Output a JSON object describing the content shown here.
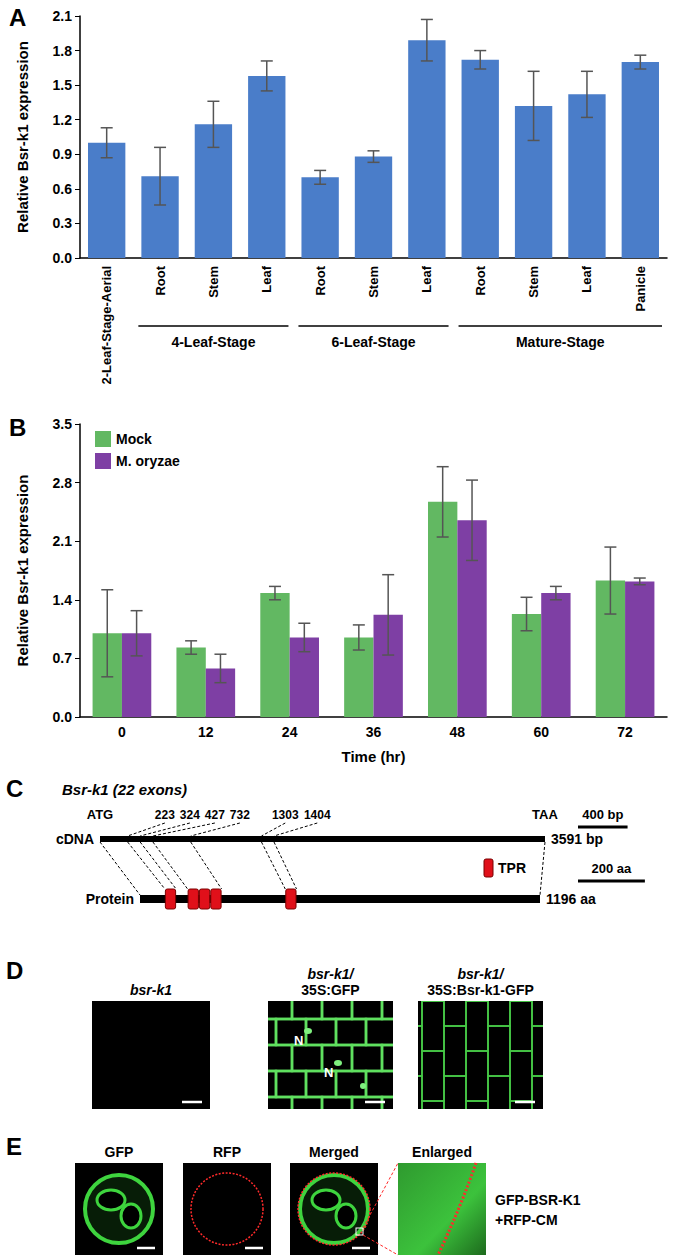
{
  "chart_data": [
    {
      "type": "bar",
      "title": "A",
      "ylabel": "Relative Bsr-k1 expression",
      "categories": [
        "2-Leaf-Stage-Aerial",
        "Root",
        "Stem",
        "Leaf",
        "Root",
        "Stem",
        "Leaf",
        "Root",
        "Stem",
        "Leaf",
        "Panicle"
      ],
      "groups": [
        {
          "label": "4-Leaf-Stage",
          "from": 1,
          "to": 3
        },
        {
          "label": "6-Leaf-Stage",
          "from": 4,
          "to": 6
        },
        {
          "label": "Mature-Stage",
          "from": 7,
          "to": 10
        }
      ],
      "values": [
        1.0,
        0.71,
        1.16,
        1.58,
        0.7,
        0.88,
        1.89,
        1.72,
        1.32,
        1.42,
        1.7
      ],
      "error": [
        0.13,
        0.25,
        0.2,
        0.13,
        0.06,
        0.05,
        0.18,
        0.08,
        0.3,
        0.2,
        0.06
      ],
      "color": "#4a7dc9",
      "ylim": [
        0,
        2.1
      ],
      "yticks": [
        {
          "value": 0,
          "label": "0.0"
        },
        0.3,
        0.6,
        0.9,
        1.2,
        1.5,
        1.8,
        2.1
      ],
      "grid": false
    },
    {
      "type": "bar",
      "title": "B",
      "xlabel": "Time (hr)",
      "ylabel": "Relative Bsr-k1 expression",
      "categories": [
        "0",
        "12",
        "24",
        "36",
        "48",
        "60",
        "72"
      ],
      "series": [
        {
          "name": "Mock",
          "color": "#62b862",
          "values": [
            1.0,
            0.83,
            1.48,
            0.95,
            2.57,
            1.23,
            1.63
          ],
          "error": [
            0.52,
            0.08,
            0.08,
            0.15,
            0.42,
            0.2,
            0.4
          ]
        },
        {
          "name": "M. oryzae",
          "color": "#7e3fa4",
          "values": [
            1.0,
            0.58,
            0.95,
            1.22,
            2.35,
            1.48,
            1.62
          ],
          "error": [
            0.27,
            0.17,
            0.17,
            0.48,
            0.48,
            0.08,
            0.04
          ]
        }
      ],
      "legend": "top-left",
      "ylim": [
        0,
        3.5
      ],
      "yticks": [
        {
          "value": 0,
          "label": "0.0"
        },
        0.7,
        1.4,
        2.1,
        2.8,
        3.5
      ],
      "grid": false
    }
  ],
  "diagram": {
    "label": "C",
    "gene": "Bsr-k1 (22 exons)",
    "start_codon": "ATG",
    "stop_codon": "TAA",
    "cdna": {
      "label": "cDNA",
      "length": 3591,
      "length_label": "3591 bp",
      "scale_bar": {
        "value": 400,
        "label": "400 bp"
      }
    },
    "protein": {
      "label": "Protein",
      "length": 1196,
      "length_label": "1196 aa",
      "scale_bar": {
        "value": 200,
        "label": "200 aa"
      }
    },
    "boundaries": [
      223,
      324,
      427,
      732,
      1303,
      1404
    ],
    "tpr": {
      "label": "TPR",
      "regions": [
        {
          "from": 223,
          "to": 324,
          "repeats": 1
        },
        {
          "from": 427,
          "to": 732,
          "repeats": 3
        },
        {
          "from": 1303,
          "to": 1404,
          "repeats": 1
        }
      ]
    }
  },
  "images": [
    {
      "label": "D",
      "tiles": [
        {
          "caption": [
            "bsr-k1"
          ]
        },
        {
          "caption": [
            "bsr-k1/",
            "35S:GFP"
          ],
          "marks": [
            "N",
            "N"
          ]
        },
        {
          "caption": [
            "bsr-k1/",
            "35S:Bsr-k1-GFP"
          ]
        }
      ]
    },
    {
      "label": "E",
      "tiles": [
        {
          "caption": [
            "GFP"
          ]
        },
        {
          "caption": [
            "RFP"
          ]
        },
        {
          "caption": [
            "Merged"
          ]
        },
        {
          "caption": [
            "Enlarged"
          ]
        }
      ],
      "side_caption": [
        "GFP-BSR-K1",
        "+RFP-CM"
      ]
    }
  ]
}
